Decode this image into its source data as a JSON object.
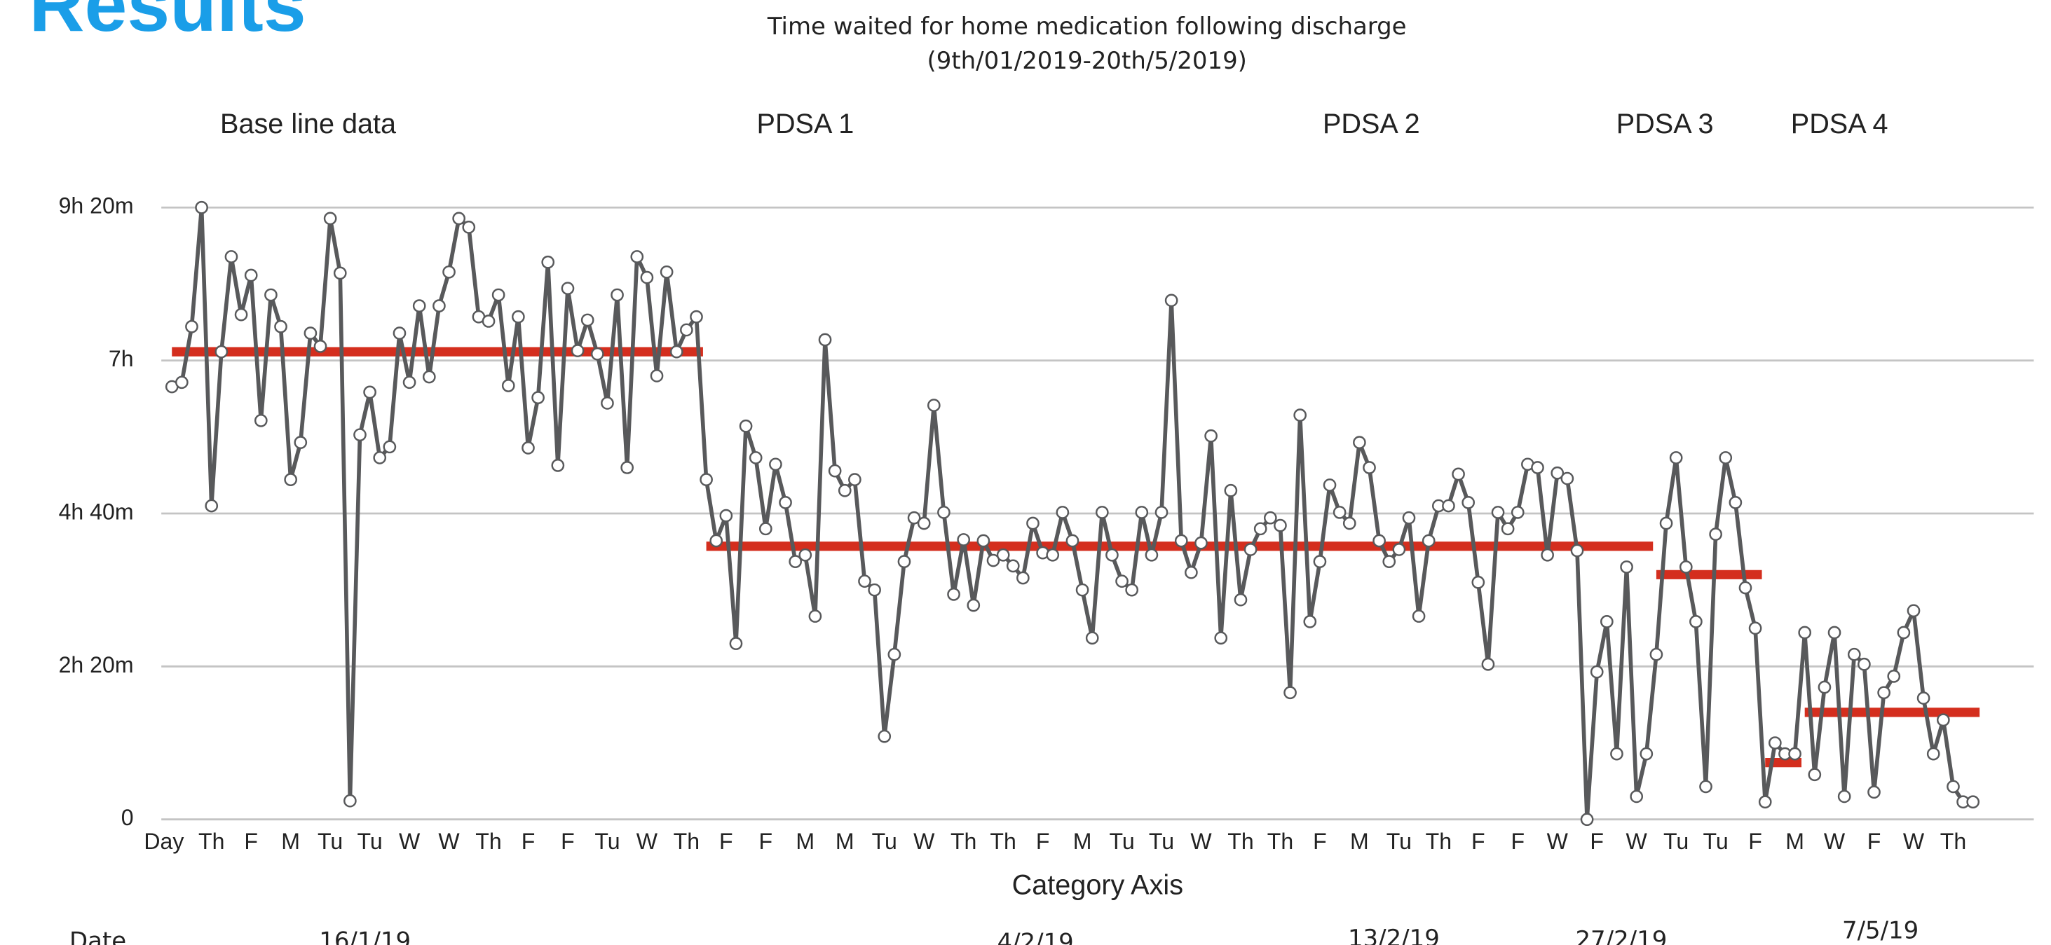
{
  "heading": "Results",
  "chart_data": {
    "type": "line",
    "title": "Time waited for home medication following discharge",
    "subtitle": "(9th/01/2019-20th/5/2019)",
    "x_label": "Category Axis",
    "phase_labels": [
      "Base line data",
      "PDSA 1",
      "PDSA 2",
      "PDSA 3",
      "PDSA 4"
    ],
    "date_row_label": "Date",
    "dates": [
      "16/1/19",
      "4/2/19",
      "13/2/19",
      "27/2/19",
      "7/5/19"
    ],
    "categories": [
      "Day",
      null,
      null,
      null,
      "Th",
      null,
      null,
      null,
      "F",
      null,
      null,
      null,
      "M",
      null,
      null,
      null,
      "Tu",
      null,
      null,
      null,
      "Tu",
      null,
      null,
      null,
      "W",
      null,
      null,
      null,
      "W",
      null,
      null,
      null,
      "Th",
      null,
      null,
      null,
      "F",
      null,
      null,
      null,
      "F",
      null,
      null,
      null,
      "Tu",
      null,
      null,
      null,
      "W",
      null,
      null,
      null,
      "Th",
      null,
      null,
      null,
      "F",
      null,
      null,
      null,
      "F",
      null,
      null,
      null,
      "M",
      null,
      null,
      null,
      "M",
      null,
      null,
      null,
      "Tu",
      null,
      null,
      null,
      "W",
      null,
      null,
      null,
      "Th",
      null,
      null,
      null,
      "Th",
      null,
      null,
      null,
      "F",
      null,
      null,
      null,
      "M",
      null,
      null,
      null,
      "Tu",
      null,
      null,
      null,
      "Tu",
      null,
      null,
      null,
      "W",
      null,
      null,
      null,
      "Th",
      null,
      null,
      null,
      "Th",
      null,
      null,
      null,
      "F",
      null,
      null,
      null,
      "M",
      null,
      null,
      null,
      "Tu",
      null,
      null,
      null,
      "Th",
      null,
      null,
      null,
      "F",
      null,
      null,
      null,
      "F",
      null,
      null,
      null,
      "W",
      null,
      null,
      null,
      "F",
      null,
      null,
      null,
      "W",
      null,
      null,
      null,
      "Tu",
      null,
      null,
      null,
      "Tu",
      null,
      null,
      null,
      "F",
      null,
      null,
      null,
      "M",
      null,
      null,
      null,
      "W",
      null,
      null,
      null,
      "F",
      null,
      null,
      null,
      "W",
      null,
      null,
      null,
      "Th",
      null,
      null
    ],
    "series": [
      {
        "name": "Time waited",
        "color": "#58595b",
        "values": [
          396,
          400,
          451,
          560,
          287,
          428,
          515,
          462,
          498,
          365,
          480,
          451,
          311,
          345,
          445,
          433,
          550,
          500,
          17,
          352,
          391,
          331,
          341,
          445,
          400,
          470,
          405,
          470,
          501,
          550,
          542,
          460,
          456,
          480,
          397,
          460,
          340,
          386,
          510,
          324,
          486,
          429,
          457,
          426,
          381,
          480,
          322,
          515,
          496,
          406,
          501,
          428,
          448,
          460,
          311,
          255,
          278,
          161,
          360,
          331,
          266,
          325,
          290,
          236,
          242,
          186,
          439,
          319,
          301,
          311,
          218,
          210,
          76,
          151,
          236,
          276,
          271,
          379,
          281,
          206,
          256,
          196,
          255,
          237,
          242,
          232,
          221,
          271,
          244,
          242,
          281,
          255,
          210,
          166,
          281,
          242,
          218,
          210,
          281,
          242,
          281,
          475,
          255,
          226,
          253,
          351,
          166,
          301,
          201,
          247,
          266,
          276,
          269,
          116,
          370,
          181,
          236,
          306,
          281,
          271,
          345,
          322,
          255,
          236,
          247,
          276,
          186,
          255,
          287,
          287,
          316,
          290,
          217,
          142,
          281,
          266,
          281,
          325,
          322,
          242,
          317,
          312,
          246,
          0,
          135,
          181,
          60,
          231,
          21,
          60,
          151,
          271,
          331,
          231,
          181,
          30,
          261,
          331,
          290,
          212,
          175,
          16,
          70,
          60,
          60,
          171,
          41,
          121,
          171,
          21,
          151,
          142,
          25,
          116,
          131,
          171,
          191,
          111,
          60,
          91,
          30,
          16,
          16
        ]
      }
    ],
    "median_color": "#d42e1e",
    "median_lines": [
      {
        "value": 428,
        "start": 0,
        "end": 53
      },
      {
        "value": 250,
        "start": 54,
        "end": 149
      },
      {
        "value": 224,
        "start": 150,
        "end": 160
      },
      {
        "value": 52,
        "start": 161,
        "end": 164
      },
      {
        "value": 98,
        "start": 165,
        "end": 182
      }
    ],
    "ylim": [
      0,
      560
    ],
    "yticks": [
      {
        "value": 0,
        "label": "0"
      },
      {
        "value": 140,
        "label": "2h 20m"
      },
      {
        "value": 280,
        "label": "4h 40m"
      },
      {
        "value": 420,
        "label": "7h"
      },
      {
        "value": 560,
        "label": "9h 20m"
      }
    ],
    "grid": true
  }
}
